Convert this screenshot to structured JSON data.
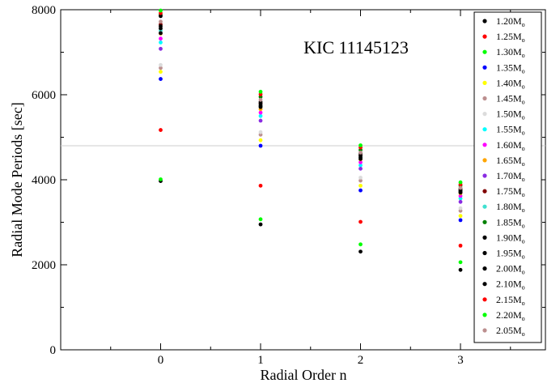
{
  "chart_data": {
    "type": "scatter",
    "annotation": "KIC 11145123",
    "xlabel": "Radial Order n",
    "ylabel": "Radial Mode Periods [sec]",
    "xlim": [
      -1,
      3.85
    ],
    "ylim": [
      0,
      8000
    ],
    "x_ticks": [
      0,
      1,
      2,
      3
    ],
    "y_ticks": [
      0,
      2000,
      4000,
      6000,
      8000
    ],
    "grid": false,
    "legend_position": "right",
    "reference_line": 4800,
    "series": [
      {
        "name": "1.20M",
        "color": "#000000",
        "x": [
          0,
          1,
          2,
          3
        ],
        "y": [
          3970,
          2950,
          2310,
          1880
        ]
      },
      {
        "name": "1.25M",
        "color": "#ff0000",
        "x": [
          0,
          1,
          2,
          3
        ],
        "y": [
          5170,
          3860,
          3010,
          2450
        ]
      },
      {
        "name": "1.30M",
        "color": "#00ff00",
        "x": [
          0,
          1,
          2,
          3
        ],
        "y": [
          4010,
          3070,
          2480,
          2060
        ]
      },
      {
        "name": "1.35M",
        "color": "#0000ff",
        "x": [
          0,
          1,
          2,
          3
        ],
        "y": [
          6370,
          4800,
          3750,
          3050
        ]
      },
      {
        "name": "1.40M",
        "color": "#ffff00",
        "x": [
          0,
          1,
          2,
          3
        ],
        "y": [
          6540,
          4930,
          3860,
          3150
        ]
      },
      {
        "name": "1.45M",
        "color": "#bc8f8f",
        "x": [
          0,
          1,
          2,
          3
        ],
        "y": [
          6630,
          5060,
          3980,
          3270
        ]
      },
      {
        "name": "1.50M",
        "color": "#dcdcdc",
        "x": [
          0,
          1,
          2,
          3
        ],
        "y": [
          6700,
          5120,
          4050,
          3330
        ]
      },
      {
        "name": "1.55M",
        "color": "#00ffff",
        "x": [
          0,
          1,
          2,
          3
        ],
        "y": [
          7230,
          5500,
          4340,
          3560
        ]
      },
      {
        "name": "1.60M",
        "color": "#ff00ff",
        "x": [
          0,
          1,
          2,
          3
        ],
        "y": [
          7320,
          5580,
          4410,
          3620
        ]
      },
      {
        "name": "1.65M",
        "color": "#ffa500",
        "x": [
          0,
          1,
          2,
          3
        ],
        "y": [
          7440,
          5660,
          4480,
          3680
        ]
      },
      {
        "name": "1.70M",
        "color": "#8a2be2",
        "x": [
          0,
          1,
          2,
          3
        ],
        "y": [
          7080,
          5390,
          4260,
          3480
        ]
      },
      {
        "name": "1.75M",
        "color": "#800000",
        "x": [
          0,
          1,
          2,
          3
        ],
        "y": [
          7650,
          5800,
          4580,
          3760
        ]
      },
      {
        "name": "1.80M",
        "color": "#40e0d0",
        "x": [
          0,
          1,
          2,
          3
        ],
        "y": [
          7510,
          5730,
          4520,
          3710
        ]
      },
      {
        "name": "1.85M",
        "color": "#008000",
        "x": [
          0,
          1,
          2,
          3
        ],
        "y": [
          7880,
          5950,
          4700,
          3860
        ]
      },
      {
        "name": "1.90M",
        "color": "#000000",
        "x": [
          0,
          1,
          2,
          3
        ],
        "y": [
          7560,
          5740,
          4530,
          3720
        ]
      },
      {
        "name": "1.95M",
        "color": "#000000",
        "x": [
          0,
          1,
          2,
          3
        ],
        "y": [
          7610,
          5780,
          4570,
          3750
        ]
      },
      {
        "name": "2.00M",
        "color": "#000000",
        "x": [
          0,
          1,
          2,
          3
        ],
        "y": [
          7850,
          5710,
          4620,
          3790
        ]
      },
      {
        "name": "2.10M",
        "color": "#000000",
        "x": [
          0,
          1,
          2,
          3
        ],
        "y": [
          7450,
          5830,
          4490,
          3700
        ]
      },
      {
        "name": "2.15M",
        "color": "#ff0000",
        "x": [
          0,
          1,
          2,
          3
        ],
        "y": [
          7920,
          6010,
          4760,
          3890
        ]
      },
      {
        "name": "2.20M",
        "color": "#00ff00",
        "x": [
          0,
          1,
          2,
          3
        ],
        "y": [
          7980,
          6070,
          4810,
          3940
        ]
      },
      {
        "name": "2.05M",
        "color": "#bc8f8f",
        "x": [
          0,
          1,
          2,
          3
        ],
        "y": [
          7720,
          5880,
          4640,
          3810
        ]
      }
    ]
  }
}
